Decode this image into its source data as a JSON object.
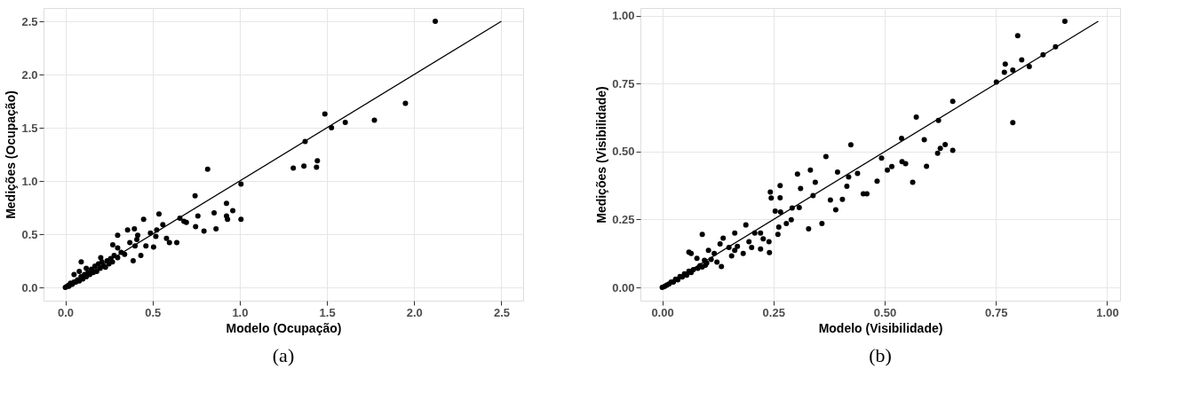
{
  "chart_data": [
    {
      "type": "scatter",
      "title": "(a)",
      "xlabel": "Modelo (Ocupação)",
      "ylabel": "Medições (Ocupação)",
      "xlim": [
        -0.125,
        2.625
      ],
      "ylim": [
        -0.125,
        2.625
      ],
      "xticks": [
        {
          "value": 0,
          "label": "0.0"
        },
        0.5,
        {
          "value": 1,
          "label": "1.0"
        },
        1.5,
        {
          "value": 2,
          "label": "2.0"
        },
        2.5
      ],
      "yticks": [
        {
          "value": 0,
          "label": "0.0"
        },
        0.5,
        {
          "value": 1,
          "label": "1.0"
        },
        1.5,
        {
          "value": 2,
          "label": "2.0"
        },
        2.5
      ],
      "grid": true,
      "series": [
        {
          "type": "scatter",
          "marker": "circle",
          "color": "#000000",
          "x": [
            0.816,
            1.007,
            0.744,
            0.924,
            0.96,
            0.853,
            1.007,
            0.924,
            0.93,
            0.76,
            0.694,
            0.68,
            0.657,
            0.747,
            0.795,
            0.864,
            0.639,
            0.597,
            0.58,
            0.537,
            0.559,
            0.449,
            0.524,
            0.488,
            0.519,
            0.462,
            0.506,
            0.396,
            0.357,
            0.415,
            0.3,
            0.41,
            0.37,
            0.4,
            0.433,
            0.389,
            0.272,
            0.3,
            0.091,
            0.203,
            0.0,
            0.01,
            0.02,
            0.02,
            0.03,
            0.03,
            0.04,
            0.05,
            0.06,
            0.07,
            0.08,
            0.09,
            0.1,
            0.11,
            0.12,
            0.13,
            0.14,
            0.15,
            0.16,
            0.17,
            0.18,
            0.19,
            0.2,
            0.21,
            0.22,
            0.23,
            0.24,
            0.25,
            0.26,
            0.27,
            0.28,
            0.3,
            0.32,
            0.34,
            0.05,
            0.08,
            0.12,
            2.121,
            1.95,
            1.772,
            1.605,
            1.488,
            1.526,
            1.375,
            1.307,
            1.368,
            1.445,
            1.44
          ],
          "values": [
            1.11,
            0.97,
            0.86,
            0.79,
            0.72,
            0.7,
            0.64,
            0.67,
            0.64,
            0.67,
            0.61,
            0.62,
            0.65,
            0.57,
            0.53,
            0.55,
            0.42,
            0.42,
            0.46,
            0.69,
            0.59,
            0.64,
            0.54,
            0.51,
            0.48,
            0.39,
            0.38,
            0.55,
            0.54,
            0.49,
            0.49,
            0.45,
            0.42,
            0.39,
            0.3,
            0.25,
            0.4,
            0.37,
            0.24,
            0.28,
            0.0,
            0.01,
            0.01,
            0.02,
            0.03,
            0.04,
            0.03,
            0.05,
            0.05,
            0.07,
            0.06,
            0.1,
            0.08,
            0.12,
            0.1,
            0.14,
            0.12,
            0.17,
            0.14,
            0.2,
            0.15,
            0.22,
            0.18,
            0.24,
            0.2,
            0.19,
            0.25,
            0.22,
            0.27,
            0.24,
            0.3,
            0.28,
            0.33,
            0.31,
            0.12,
            0.15,
            0.18,
            2.5,
            1.73,
            1.57,
            1.55,
            1.63,
            1.5,
            1.37,
            1.12,
            1.14,
            1.19,
            1.13
          ]
        },
        {
          "type": "line",
          "marker": "none",
          "color": "#000000",
          "x": [
            0,
            2.5
          ],
          "values": [
            0,
            2.5
          ]
        }
      ]
    },
    {
      "type": "scatter",
      "title": "(b)",
      "xlabel": "Modelo (Visibilidade)",
      "ylabel": "Medições (Visibilidade)",
      "xlim": [
        -0.049,
        1.029
      ],
      "ylim": [
        -0.049,
        1.029
      ],
      "xticks": [
        {
          "value": 0,
          "label": "0.00"
        },
        0.25,
        {
          "value": 0.5,
          "label": "0.50"
        },
        0.75,
        {
          "value": 1,
          "label": "1.00"
        }
      ],
      "yticks": [
        {
          "value": 0,
          "label": "0.00"
        },
        0.25,
        {
          "value": 0.5,
          "label": "0.50"
        },
        0.75,
        {
          "value": 1,
          "label": "1.00"
        }
      ],
      "grid": true,
      "series": [
        {
          "type": "scatter",
          "marker": "circle",
          "color": "#000000",
          "x": [
            0.905,
            0.799,
            0.884,
            0.856,
            0.808,
            0.771,
            0.769,
            0.788,
            0.825,
            0.751,
            0.788,
            0.653,
            0.571,
            0.621,
            0.538,
            0.589,
            0.636,
            0.625,
            0.619,
            0.653,
            0.594,
            0.424,
            0.493,
            0.516,
            0.506,
            0.539,
            0.547,
            0.483,
            0.563,
            0.439,
            0.419,
            0.415,
            0.452,
            0.46,
            0.405,
            0.368,
            0.304,
            0.333,
            0.394,
            0.344,
            0.311,
            0.265,
            0.243,
            0.245,
            0.265,
            0.339,
            0.378,
            0.39,
            0.359,
            0.329,
            0.308,
            0.292,
            0.254,
            0.266,
            0.279,
            0.29,
            0.262,
            0.26,
            0.24,
            0.241,
            0.221,
            0.188,
            0.163,
            0.208,
            0.137,
            0.13,
            0.09,
            0.065,
            0.078,
            0.15,
            0.163,
            0.169,
            0.156,
            0.182,
            0.195,
            0.201,
            0.221,
            0.227,
            0.117,
            0.11,
            0.123,
            0.133,
            0.104,
            0.097,
            0.0,
            0.005,
            0.01,
            0.015,
            0.02,
            0.025,
            0.03,
            0.035,
            0.04,
            0.045,
            0.05,
            0.055,
            0.06,
            0.065,
            0.07,
            0.08,
            0.085,
            0.09,
            0.1,
            0.095,
            0.06
          ],
          "values": [
            0.98,
            0.927,
            0.886,
            0.857,
            0.838,
            0.822,
            0.792,
            0.8,
            0.813,
            0.756,
            0.607,
            0.685,
            0.627,
            0.615,
            0.549,
            0.544,
            0.526,
            0.512,
            0.494,
            0.505,
            0.446,
            0.525,
            0.476,
            0.445,
            0.432,
            0.463,
            0.456,
            0.391,
            0.387,
            0.42,
            0.407,
            0.372,
            0.345,
            0.345,
            0.324,
            0.482,
            0.417,
            0.432,
            0.425,
            0.387,
            0.364,
            0.375,
            0.351,
            0.329,
            0.33,
            0.338,
            0.322,
            0.286,
            0.235,
            0.216,
            0.294,
            0.292,
            0.281,
            0.278,
            0.235,
            0.249,
            0.222,
            0.195,
            0.168,
            0.128,
            0.141,
            0.23,
            0.2,
            0.2,
            0.181,
            0.16,
            0.195,
            0.125,
            0.107,
            0.147,
            0.136,
            0.151,
            0.116,
            0.125,
            0.168,
            0.147,
            0.2,
            0.179,
            0.125,
            0.103,
            0.093,
            0.077,
            0.136,
            0.082,
            0.0,
            0.003,
            0.008,
            0.012,
            0.02,
            0.02,
            0.03,
            0.028,
            0.04,
            0.038,
            0.05,
            0.045,
            0.06,
            0.055,
            0.065,
            0.07,
            0.08,
            0.075,
            0.09,
            0.1,
            0.13
          ]
        },
        {
          "type": "line",
          "marker": "none",
          "color": "#000000",
          "x": [
            0,
            0.98
          ],
          "values": [
            0,
            0.98
          ]
        }
      ]
    }
  ]
}
